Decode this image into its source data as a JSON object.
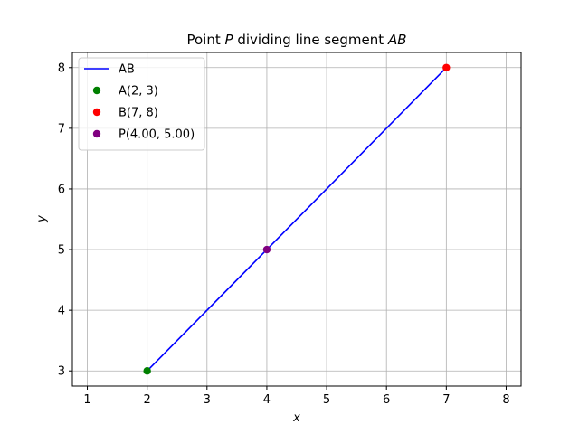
{
  "chart_data": {
    "type": "line",
    "title": "Point P dividing line segment AB",
    "title_parts": {
      "t1": "Point ",
      "t2": "P",
      "t3": " dividing line segment ",
      "t4": "AB"
    },
    "xlabel": "x",
    "ylabel": "y",
    "xlim": [
      0.75,
      8.25
    ],
    "ylim": [
      2.75,
      8.25
    ],
    "xticks": [
      1,
      2,
      3,
      4,
      5,
      6,
      7,
      8
    ],
    "yticks": [
      3,
      4,
      5,
      6,
      7,
      8
    ],
    "grid": true,
    "legend_position": "top-left",
    "series": [
      {
        "name": "AB",
        "kind": "line",
        "color": "#0000ff",
        "x": [
          2,
          7
        ],
        "y": [
          3,
          8
        ]
      },
      {
        "name": "A(2, 3)",
        "kind": "point",
        "color": "#008000",
        "x": [
          2
        ],
        "y": [
          3
        ]
      },
      {
        "name": "B(7, 8)",
        "kind": "point",
        "color": "#ff0000",
        "x": [
          7
        ],
        "y": [
          8
        ]
      },
      {
        "name": "P(4.00, 5.00)",
        "kind": "point",
        "color": "#800080",
        "x": [
          4
        ],
        "y": [
          5
        ]
      }
    ]
  }
}
